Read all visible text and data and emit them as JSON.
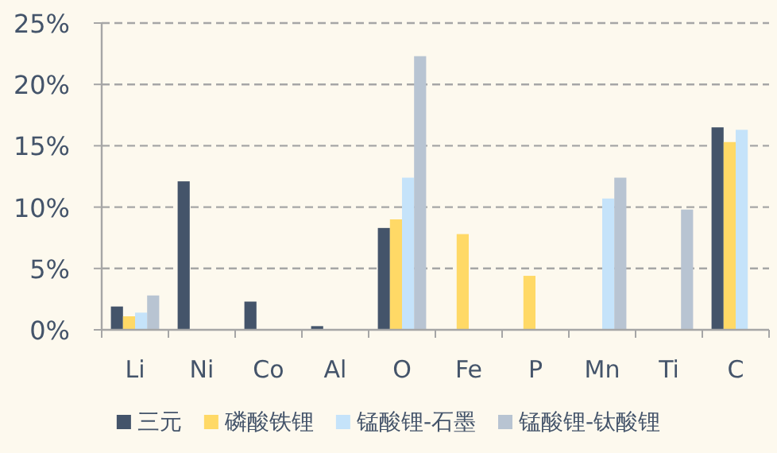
{
  "chart_data": {
    "type": "bar",
    "categories": [
      "Li",
      "Ni",
      "Co",
      "Al",
      "O",
      "Fe",
      "P",
      "Mn",
      "Ti",
      "C"
    ],
    "series": [
      {
        "name": "三元",
        "color": "#44546a",
        "values": [
          1.9,
          12.1,
          2.3,
          0.3,
          8.3,
          null,
          null,
          null,
          null,
          16.5
        ]
      },
      {
        "name": "磷酸铁锂",
        "color": "#ffd966",
        "values": [
          1.1,
          null,
          null,
          null,
          9.0,
          7.8,
          4.4,
          null,
          null,
          15.3
        ]
      },
      {
        "name": "锰酸锂-石墨",
        "color": "#c5e3fa",
        "values": [
          1.4,
          null,
          null,
          null,
          12.4,
          null,
          null,
          10.7,
          null,
          16.3
        ]
      },
      {
        "name": "锰酸锂-钛酸锂",
        "color": "#b8c4d2",
        "values": [
          2.8,
          null,
          null,
          null,
          22.3,
          null,
          null,
          12.4,
          9.8,
          null
        ]
      }
    ],
    "ylim": [
      0,
      25
    ],
    "yticks": [
      {
        "value": 0,
        "label": "0%"
      },
      {
        "value": 5,
        "label": "5%"
      },
      {
        "value": 10,
        "label": "10%"
      },
      {
        "value": 15,
        "label": "15%"
      },
      {
        "value": 20,
        "label": "20%"
      },
      {
        "value": 25,
        "label": "25%"
      }
    ],
    "grid": "y",
    "legend": "bottom"
  }
}
